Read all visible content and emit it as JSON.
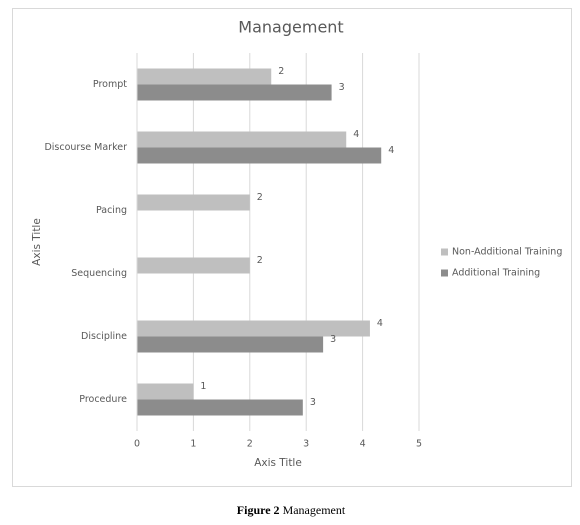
{
  "chart_data": {
    "type": "hbar",
    "title": "Management",
    "categories": [
      "Prompt",
      "Discourse Marker",
      "Pacing",
      "Sequencing",
      "Discipline",
      "Procedure"
    ],
    "series": [
      {
        "name": "Non-Additional Training",
        "color": "#bfbfbf",
        "values": [
          2.38,
          3.71,
          2,
          2,
          4.13,
          1
        ],
        "value_labels": [
          "2",
          "4",
          "2",
          "2",
          "4",
          "1"
        ]
      },
      {
        "name": "Additional Training",
        "color": "#8c8c8c",
        "values": [
          3.45,
          4.33,
          null,
          null,
          3.3,
          2.94
        ],
        "value_labels": [
          "3",
          "4",
          null,
          null,
          "3",
          "3"
        ]
      }
    ],
    "xlim": [
      0,
      5
    ],
    "xticks": [
      0,
      1,
      2,
      3,
      4,
      5
    ],
    "xlabel": "Axis Title",
    "ylabel": "Axis Title",
    "grid": true,
    "legend": "right"
  },
  "caption": {
    "label": "Figure 2",
    "text": "Management"
  }
}
